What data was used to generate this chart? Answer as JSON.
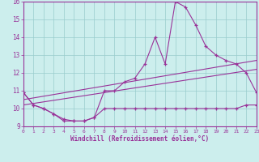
{
  "xlabel": "Windchill (Refroidissement éolien,°C)",
  "bg_color": "#cceeed",
  "grid_color": "#99cccc",
  "line_color": "#993399",
  "xlim": [
    0,
    23
  ],
  "ylim": [
    9,
    16
  ],
  "xticks": [
    0,
    1,
    2,
    3,
    4,
    5,
    6,
    7,
    8,
    9,
    10,
    11,
    12,
    13,
    14,
    15,
    16,
    17,
    18,
    19,
    20,
    21,
    22,
    23
  ],
  "yticks": [
    9,
    10,
    11,
    12,
    13,
    14,
    15,
    16
  ],
  "series1_x": [
    0,
    1,
    2,
    3,
    4,
    5,
    6,
    7,
    8,
    9,
    10,
    11,
    12,
    13,
    14,
    15,
    16,
    17,
    18,
    19,
    20,
    21,
    22,
    23
  ],
  "series1_y": [
    10.9,
    10.2,
    10.0,
    9.7,
    9.3,
    9.3,
    9.3,
    9.5,
    11.0,
    11.0,
    11.5,
    11.7,
    12.5,
    14.0,
    12.5,
    16.0,
    15.7,
    14.7,
    13.5,
    13.0,
    12.7,
    12.5,
    12.0,
    10.9
  ],
  "series2_x": [
    0,
    1,
    2,
    3,
    4,
    5,
    6,
    7,
    8,
    9,
    10,
    11,
    12,
    13,
    14,
    15,
    16,
    17,
    18,
    19,
    20,
    21,
    22,
    23
  ],
  "series2_y": [
    10.9,
    10.2,
    10.0,
    9.7,
    9.4,
    9.3,
    9.3,
    9.5,
    10.0,
    10.0,
    10.0,
    10.0,
    10.0,
    10.0,
    10.0,
    10.0,
    10.0,
    10.0,
    10.0,
    10.0,
    10.0,
    10.0,
    10.2,
    10.2
  ],
  "series3_x": [
    0,
    23
  ],
  "series3_y": [
    10.5,
    12.7
  ],
  "series4_x": [
    0,
    23
  ],
  "series4_y": [
    10.2,
    12.2
  ]
}
